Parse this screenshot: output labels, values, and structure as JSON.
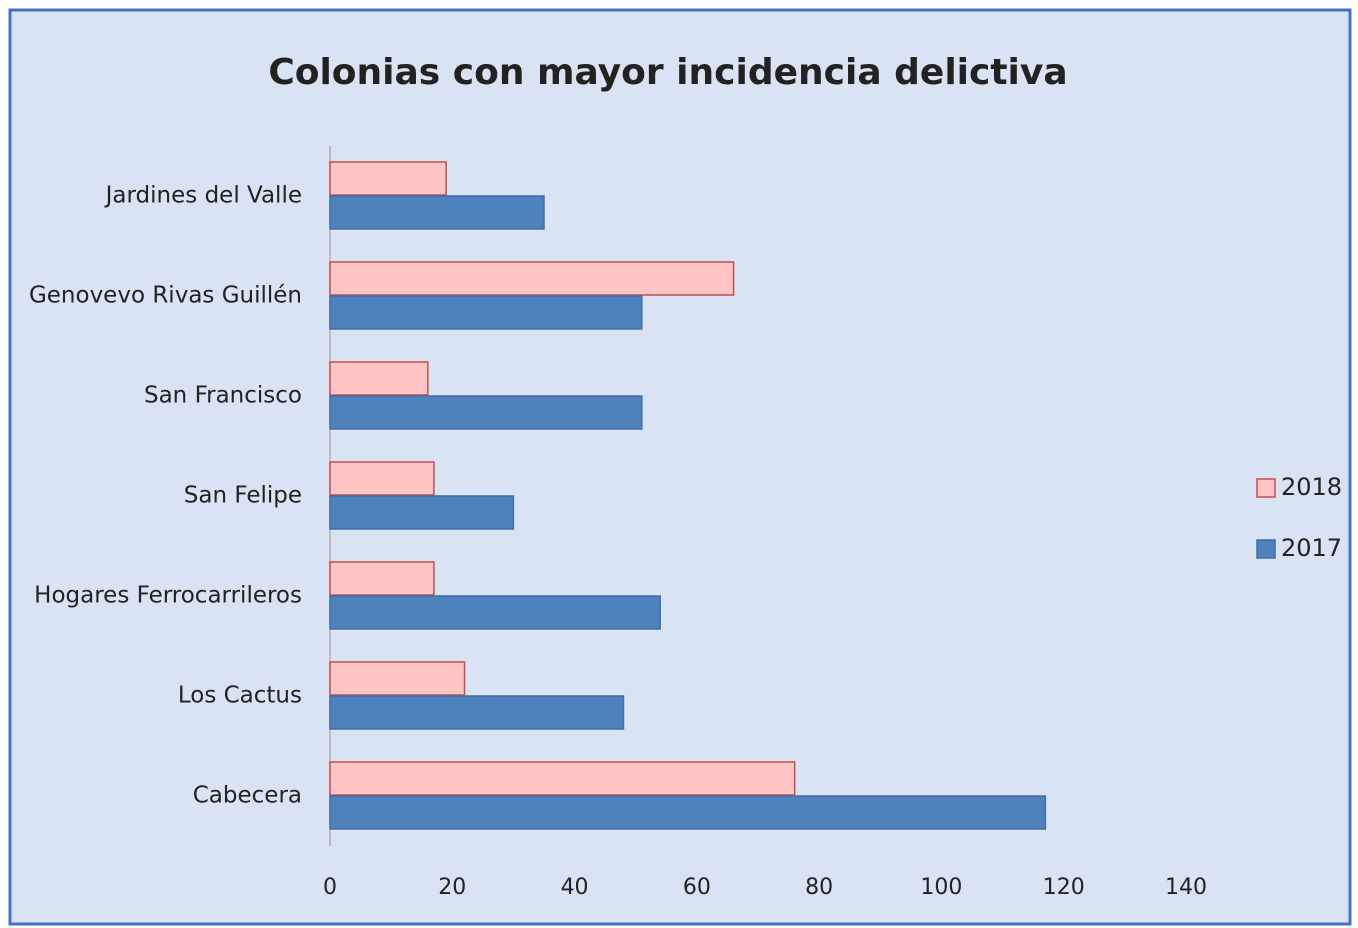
{
  "chart_data": {
    "type": "bar",
    "orientation": "horizontal",
    "title": "Colonias  con mayor incidencia  delictiva",
    "categories": [
      "Jardines del Valle",
      "Genovevo Rivas Guillén",
      "San Francisco",
      "San Felipe",
      "Hogares Ferrocarrileros",
      "Los Cactus",
      "Cabecera"
    ],
    "series": [
      {
        "name": "2018",
        "color": "#ffc4c4",
        "edge": "#c0504d",
        "values": [
          19,
          66,
          16,
          17,
          17,
          22,
          76
        ]
      },
      {
        "name": "2017",
        "color": "#4f81bd",
        "edge": "#3f6fa8",
        "values": [
          35,
          51,
          51,
          30,
          54,
          48,
          117
        ]
      }
    ],
    "xlim": [
      0,
      140
    ],
    "xticks": [
      0,
      20,
      40,
      60,
      80,
      100,
      120,
      140
    ],
    "grid": false,
    "legend": "right"
  }
}
